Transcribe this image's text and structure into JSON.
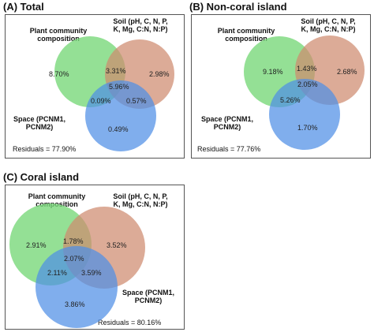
{
  "panels": [
    {
      "title": "(A) Total",
      "labels": {
        "plant": [
          "Plant community",
          "composition"
        ],
        "soil": [
          "Soil (pH, C, N, P,",
          "K, Mg, C:N, N:P)"
        ],
        "space": [
          "Space (PCNM1,",
          "PCNM2)"
        ]
      },
      "values": {
        "plant_only": "8.70%",
        "soil_only": "2.98%",
        "space_only": "0.49%",
        "plant_soil": "3.31%",
        "plant_space": "0.09%",
        "soil_space": "0.57%",
        "all": "5.96%"
      },
      "residuals": "Residuals = 77.90%"
    },
    {
      "title": "(B) Non-coral island",
      "labels": {
        "plant": [
          "Plant community",
          "composition"
        ],
        "soil": [
          "Soil (pH, C, N, P,",
          "K, Mg, C:N, N:P)"
        ],
        "space": [
          "Space (PCNM1,",
          "PCNM2)"
        ]
      },
      "values": {
        "plant_only": "9.18%",
        "soil_only": "2.68%",
        "space_only": "1.70%",
        "plant_soil": "1.43%",
        "plant_space": "5.26%",
        "soil_space": "",
        "all": "2.05%"
      },
      "residuals": "Residuals = 77.76%"
    },
    {
      "title": "(C) Coral island",
      "labels": {
        "plant": [
          "Plant community",
          "composition"
        ],
        "soil": [
          "Soil (pH, C, N, P,",
          "K, Mg, C:N, N:P)"
        ],
        "space": [
          "Space (PCNM1,",
          "PCNM2)"
        ]
      },
      "values": {
        "plant_only": "2.91%",
        "soil_only": "3.52%",
        "space_only": "3.86%",
        "plant_soil": "1.78%",
        "plant_space": "2.11%",
        "soil_space": "3.59%",
        "all": "2.07%"
      },
      "residuals": "Residuals = 80.16%"
    }
  ],
  "colors": {
    "plant": "#79d87a",
    "soil": "#cf8a6f",
    "space": "#4f8fe6"
  }
}
